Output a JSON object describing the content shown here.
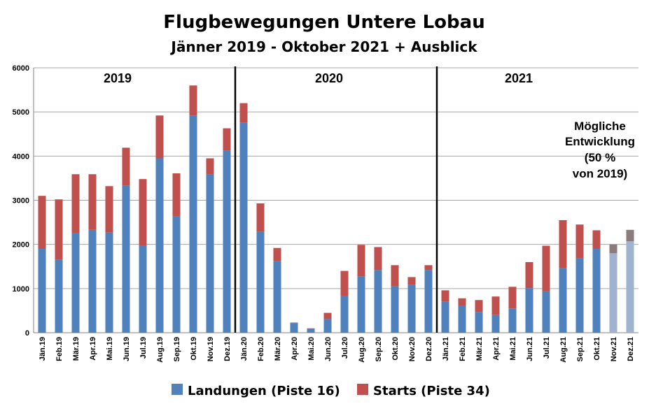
{
  "chart_data": {
    "type": "bar",
    "stacked": true,
    "title": "Flugbewegungen Untere Lobau",
    "subtitle": "Jänner 2019 - Oktober 2021 + Ausblick",
    "ylim": [
      0,
      6000
    ],
    "yticks": [
      0,
      1000,
      2000,
      3000,
      4000,
      5000,
      6000
    ],
    "grid": true,
    "legend_position": "bottom",
    "categories": [
      "Jän.19",
      "Feb.19",
      "Mär.19",
      "Apr.19",
      "Mai.19",
      "Jun.19",
      "Jul.19",
      "Aug.19",
      "Sep.19",
      "Okt.19",
      "Nov.19",
      "Dez.19",
      "Jän.20",
      "Feb.20",
      "Mär.20",
      "Apr.20",
      "Mai.20",
      "Jun.20",
      "Jul.20",
      "Aug.20",
      "Sep.20",
      "Okt.20",
      "Nov.20",
      "Dez.20",
      "Jän.21",
      "Feb.21",
      "Mär.21",
      "Apr.21",
      "Mai.21",
      "Jun.21",
      "Jul.21",
      "Aug.21",
      "Sep.21",
      "Okt.21",
      "Nov.21",
      "Dez.21"
    ],
    "series": [
      {
        "name": "Landungen (Piste 16)",
        "color": "#4f81bd",
        "projection_color": "#9fb3cf",
        "values": [
          1900,
          1650,
          2250,
          2330,
          2270,
          3330,
          1970,
          3950,
          2630,
          4920,
          3580,
          4120,
          4760,
          2290,
          1620,
          220,
          90,
          310,
          830,
          1270,
          1420,
          1060,
          1080,
          1420,
          700,
          610,
          470,
          400,
          550,
          1010,
          940,
          1460,
          1680,
          1900,
          1800,
          2070
        ]
      },
      {
        "name": "Starts (Piste 34)",
        "color": "#c0504d",
        "projection_color": "#8c7b7b",
        "values": [
          1200,
          1370,
          1340,
          1260,
          1050,
          860,
          1510,
          970,
          980,
          680,
          370,
          510,
          440,
          640,
          300,
          10,
          10,
          140,
          570,
          720,
          520,
          470,
          180,
          110,
          260,
          170,
          270,
          420,
          490,
          590,
          1030,
          1090,
          770,
          420,
          200,
          260
        ]
      }
    ],
    "projection_categories": [
      "Nov.21",
      "Dez.21"
    ],
    "year_labels": [
      "2019",
      "2020",
      "2021"
    ],
    "annotation": [
      "Mögliche",
      "Entwicklung",
      "(50 %",
      "von 2019)"
    ]
  }
}
